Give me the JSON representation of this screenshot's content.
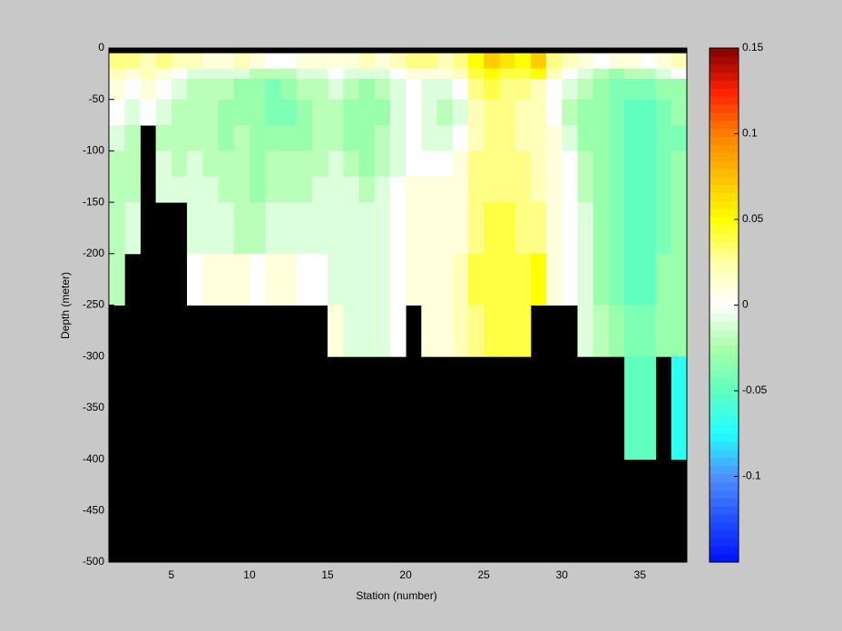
{
  "chart_data": {
    "type": "heatmap",
    "xlabel": "Station (number)",
    "ylabel": "Depth (meter)",
    "xlim": [
      1,
      38
    ],
    "ylim": [
      -500,
      0
    ],
    "xticks": [
      5,
      10,
      15,
      20,
      25,
      30,
      35
    ],
    "yticks": [
      0,
      -50,
      -100,
      -150,
      -200,
      -250,
      -300,
      -350,
      -400,
      -450,
      -500
    ],
    "x_edges": [
      1,
      2,
      3,
      4,
      5,
      6,
      7,
      8,
      9,
      10,
      11,
      12,
      13,
      14,
      15,
      16,
      17,
      18,
      19,
      20,
      21,
      22,
      23,
      24,
      25,
      26,
      27,
      28,
      29,
      30,
      31,
      32,
      33,
      34,
      35,
      36,
      37,
      38
    ],
    "y_edges": [
      0,
      -5,
      -20,
      -30,
      -50,
      -75,
      -100,
      -125,
      -150,
      -200,
      -250,
      -300,
      -400,
      -500
    ],
    "values": [
      [
        null,
        null,
        null,
        null,
        null,
        null,
        null,
        null,
        null,
        null,
        null,
        null,
        null,
        null,
        null,
        null,
        null,
        null,
        null,
        null,
        null,
        null,
        null,
        null,
        null,
        null,
        null,
        null,
        null,
        null,
        null,
        null,
        null,
        null,
        null,
        null,
        null
      ],
      [
        0.03,
        0.03,
        0.02,
        0.03,
        0.02,
        0.02,
        0.01,
        0.01,
        0.02,
        0.01,
        0,
        0,
        0.01,
        0.01,
        0.01,
        0.01,
        0.02,
        0.01,
        0.02,
        0.03,
        0.03,
        0.02,
        0.03,
        0.05,
        0.07,
        0.06,
        0.05,
        0.07,
        0.03,
        0.02,
        0.01,
        0,
        0.01,
        0.01,
        0,
        0.01,
        0.02
      ],
      [
        0.02,
        0.01,
        0.02,
        0.01,
        0,
        -0.01,
        -0.01,
        -0.01,
        -0.01,
        -0.02,
        -0.02,
        -0.02,
        -0.01,
        -0.01,
        0,
        -0.01,
        -0.01,
        -0.01,
        0,
        0.01,
        0.01,
        0.01,
        0.02,
        0.04,
        0.05,
        0.04,
        0.04,
        0.05,
        0.02,
        0,
        -0.01,
        -0.02,
        -0.03,
        -0.02,
        -0.02,
        -0.01,
        0
      ],
      [
        0.01,
        0,
        0.01,
        0,
        -0.01,
        -0.02,
        -0.02,
        -0.02,
        -0.03,
        -0.03,
        -0.04,
        -0.03,
        -0.02,
        -0.02,
        -0.01,
        -0.02,
        -0.03,
        -0.02,
        -0.01,
        0,
        -0.01,
        -0.01,
        0,
        0.03,
        0.04,
        0.03,
        0.03,
        0.02,
        0,
        -0.01,
        -0.02,
        -0.03,
        -0.04,
        -0.04,
        -0.04,
        -0.03,
        -0.03
      ],
      [
        0,
        -0.01,
        0,
        -0.01,
        -0.02,
        -0.02,
        -0.02,
        -0.03,
        -0.03,
        -0.03,
        -0.04,
        -0.04,
        -0.03,
        -0.02,
        -0.02,
        -0.03,
        -0.03,
        -0.03,
        -0.01,
        0,
        -0.01,
        -0.02,
        -0.01,
        0.02,
        0.03,
        0.03,
        0.02,
        0.02,
        0,
        -0.02,
        -0.03,
        -0.03,
        -0.04,
        -0.05,
        -0.05,
        -0.04,
        -0.03
      ],
      [
        -0.01,
        -0.02,
        null,
        -0.02,
        -0.02,
        -0.02,
        -0.02,
        -0.03,
        -0.02,
        -0.03,
        -0.03,
        -0.03,
        -0.03,
        -0.02,
        -0.02,
        -0.03,
        -0.03,
        -0.02,
        -0.01,
        0,
        -0.01,
        -0.01,
        0,
        0.02,
        0.03,
        0.03,
        0.02,
        0.02,
        0.01,
        -0.01,
        -0.03,
        -0.03,
        -0.04,
        -0.05,
        -0.05,
        -0.04,
        -0.04
      ],
      [
        -0.02,
        -0.02,
        null,
        -0.01,
        -0.02,
        -0.01,
        -0.02,
        -0.02,
        -0.02,
        -0.03,
        -0.02,
        -0.02,
        -0.02,
        -0.02,
        -0.01,
        -0.02,
        -0.03,
        -0.02,
        -0.01,
        0,
        0,
        0,
        0.01,
        0.03,
        0.03,
        0.03,
        0.03,
        0.02,
        0.01,
        0,
        -0.02,
        -0.03,
        -0.04,
        -0.05,
        -0.05,
        -0.04,
        -0.03
      ],
      [
        -0.02,
        -0.02,
        null,
        -0.01,
        -0.01,
        -0.01,
        -0.01,
        -0.02,
        -0.02,
        -0.03,
        -0.02,
        -0.02,
        -0.02,
        -0.01,
        -0.01,
        -0.01,
        -0.02,
        -0.01,
        0,
        0.01,
        0.01,
        0.01,
        0.01,
        0.03,
        0.03,
        0.03,
        0.03,
        0.02,
        0.01,
        0,
        -0.02,
        -0.03,
        -0.04,
        -0.05,
        -0.05,
        -0.04,
        -0.03
      ],
      [
        -0.02,
        -0.01,
        null,
        null,
        null,
        -0.01,
        -0.01,
        -0.01,
        -0.02,
        -0.02,
        -0.01,
        -0.01,
        -0.01,
        -0.01,
        -0.01,
        -0.01,
        -0.01,
        -0.01,
        0,
        0.01,
        0.01,
        0.01,
        0.01,
        0.03,
        0.04,
        0.04,
        0.03,
        0.03,
        0.01,
        0,
        -0.01,
        -0.03,
        -0.04,
        -0.05,
        -0.05,
        -0.04,
        -0.03
      ],
      [
        -0.02,
        null,
        null,
        null,
        null,
        0,
        0.01,
        0.01,
        0.01,
        0,
        0.01,
        0.01,
        0,
        0,
        -0.01,
        -0.01,
        -0.01,
        -0.01,
        0,
        0.01,
        0.01,
        0.01,
        0.02,
        0.04,
        0.04,
        0.04,
        0.04,
        0.05,
        0.01,
        0,
        -0.01,
        -0.03,
        -0.04,
        -0.05,
        -0.05,
        -0.03,
        -0.03
      ],
      [
        null,
        null,
        null,
        null,
        null,
        null,
        null,
        null,
        null,
        null,
        null,
        null,
        null,
        null,
        0.01,
        -0.01,
        -0.01,
        -0.01,
        0,
        null,
        0.01,
        0.01,
        0.02,
        0.03,
        0.04,
        0.04,
        0.04,
        null,
        null,
        null,
        -0.01,
        -0.02,
        -0.03,
        -0.04,
        -0.04,
        -0.03,
        -0.03
      ],
      [
        null,
        null,
        null,
        null,
        null,
        null,
        null,
        null,
        null,
        null,
        null,
        null,
        null,
        null,
        null,
        null,
        null,
        null,
        null,
        null,
        null,
        null,
        null,
        null,
        null,
        null,
        null,
        null,
        null,
        null,
        null,
        null,
        null,
        -0.05,
        -0.05,
        null,
        -0.07
      ],
      [
        null,
        null,
        null,
        null,
        null,
        null,
        null,
        null,
        null,
        null,
        null,
        null,
        null,
        null,
        null,
        null,
        null,
        null,
        null,
        null,
        null,
        null,
        null,
        null,
        null,
        null,
        null,
        null,
        null,
        null,
        null,
        null,
        null,
        null,
        null,
        null,
        null
      ]
    ],
    "clim": [
      -0.15,
      0.15
    ],
    "colorbar_ticks": [
      -0.1,
      -0.05,
      0,
      0.05,
      0.1,
      0.15
    ],
    "colormap": [
      "#0010ff",
      "#2050ff",
      "#5090ff",
      "#20ffff",
      "#60ffc0",
      "#a8ffa8",
      "#ffffff",
      "#ffffa8",
      "#ffff00",
      "#ffc000",
      "#ff8000",
      "#ff2000",
      "#800000"
    ],
    "missing_color": "#000000"
  }
}
